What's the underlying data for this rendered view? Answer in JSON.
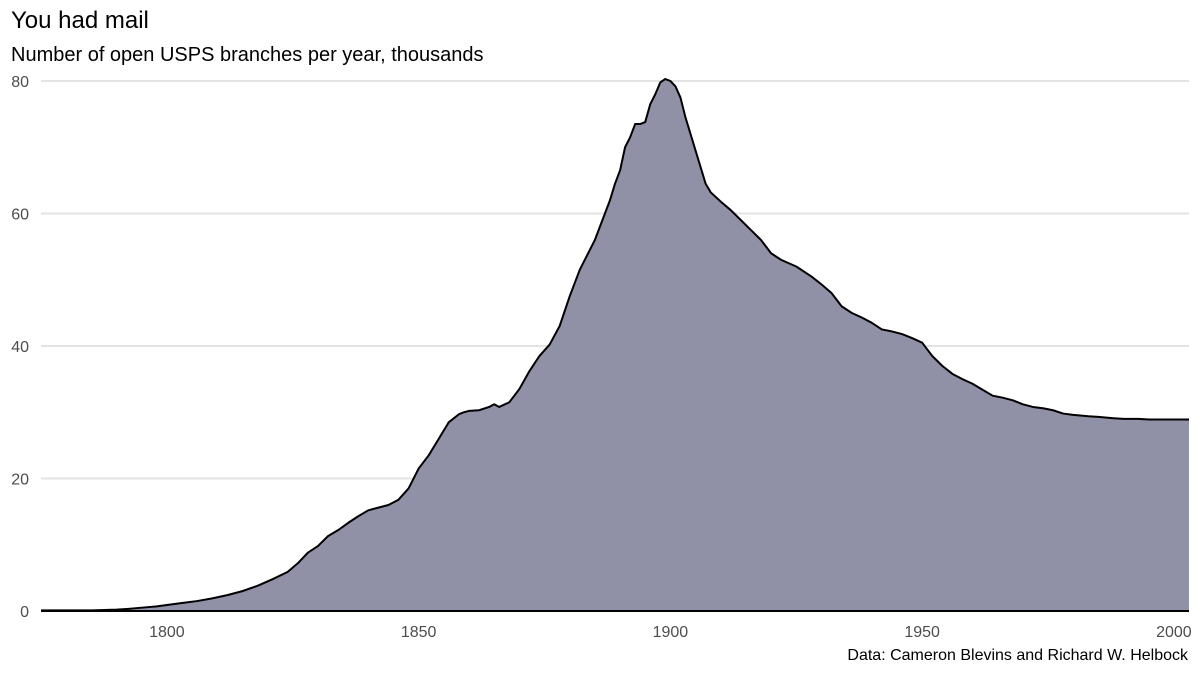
{
  "chart_data": {
    "type": "area",
    "title": "You had mail",
    "subtitle": "Number of open USPS branches per year, thousands",
    "caption": "Data: Cameron Blevins and Richard W. Helbock",
    "xlabel": "",
    "ylabel": "",
    "xlim": [
      1775,
      2003
    ],
    "ylim": [
      0,
      80
    ],
    "x_ticks": [
      1800,
      1850,
      1900,
      1950,
      2000
    ],
    "y_ticks": [
      0,
      20,
      40,
      60,
      80
    ],
    "grid": {
      "major_y": true,
      "major_x": false
    },
    "legend": "none",
    "colors": {
      "fill": "#9091a6",
      "line": "#000000",
      "grid": "#e3e3e3",
      "tick_text": "#4d4d4d"
    },
    "series": [
      {
        "x": [
          1775,
          1780,
          1785,
          1790,
          1792,
          1795,
          1798,
          1800,
          1803,
          1806,
          1809,
          1812,
          1815,
          1818,
          1821,
          1824,
          1826,
          1828,
          1830,
          1832,
          1834,
          1836,
          1838,
          1840,
          1842,
          1844,
          1846,
          1848,
          1850,
          1852,
          1854,
          1856,
          1858,
          1859,
          1860,
          1862,
          1864,
          1865,
          1866,
          1868,
          1870,
          1872,
          1874,
          1876,
          1878,
          1880,
          1882,
          1884,
          1885,
          1886,
          1887,
          1888,
          1889,
          1890,
          1891,
          1892,
          1893,
          1894,
          1895,
          1896,
          1897,
          1898,
          1899,
          1900,
          1901,
          1902,
          1903,
          1904,
          1905,
          1906,
          1907,
          1908,
          1909,
          1910,
          1912,
          1914,
          1916,
          1918,
          1919,
          1920,
          1922,
          1925,
          1928,
          1930,
          1932,
          1934,
          1936,
          1938,
          1940,
          1942,
          1944,
          1946,
          1948,
          1950,
          1952,
          1954,
          1956,
          1958,
          1960,
          1962,
          1964,
          1966,
          1968,
          1970,
          1972,
          1974,
          1976,
          1978,
          1980,
          1983,
          1985,
          1988,
          1990,
          1993,
          1995,
          1998,
          2000,
          2003
        ],
        "values": [
          0.1,
          0.1,
          0.1,
          0.2,
          0.3,
          0.5,
          0.7,
          0.9,
          1.2,
          1.5,
          1.9,
          2.4,
          3.0,
          3.8,
          4.8,
          5.9,
          7.2,
          8.8,
          9.8,
          11.3,
          12.2,
          13.3,
          14.3,
          15.2,
          15.6,
          16.0,
          16.8,
          18.5,
          21.5,
          23.5,
          26.0,
          28.5,
          29.7,
          30.0,
          30.2,
          30.3,
          30.8,
          31.2,
          30.8,
          31.5,
          33.5,
          36.2,
          38.5,
          40.2,
          43.0,
          47.5,
          51.5,
          54.5,
          56.0,
          58.0,
          60.0,
          62.0,
          64.5,
          66.5,
          70.0,
          71.5,
          73.5,
          73.5,
          73.8,
          76.5,
          78.0,
          79.8,
          80.3,
          80.0,
          79.2,
          77.5,
          74.5,
          72.0,
          69.5,
          67.0,
          64.5,
          63.2,
          62.5,
          61.8,
          60.5,
          59.0,
          57.5,
          56.0,
          55.0,
          54.0,
          53.0,
          52.0,
          50.5,
          49.3,
          48.0,
          46.0,
          45.0,
          44.3,
          43.5,
          42.5,
          42.2,
          41.8,
          41.2,
          40.5,
          38.5,
          37.0,
          35.8,
          35.0,
          34.3,
          33.4,
          32.5,
          32.2,
          31.8,
          31.2,
          30.8,
          30.6,
          30.3,
          29.8,
          29.6,
          29.4,
          29.3,
          29.1,
          29.0,
          29.0,
          28.9,
          28.9,
          28.9,
          28.9
        ]
      }
    ]
  }
}
